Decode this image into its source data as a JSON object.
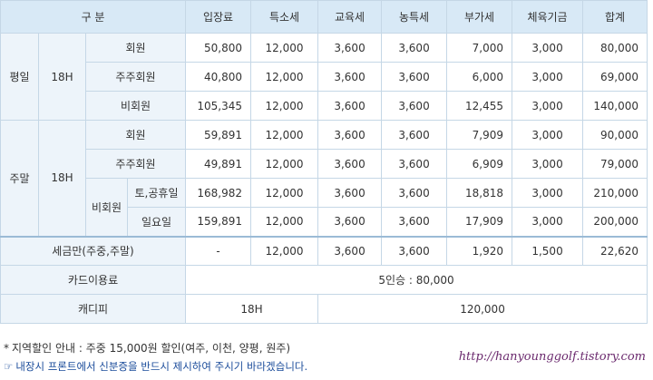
{
  "table": {
    "headers": [
      "구 분",
      "입장료",
      "특소세",
      "교육세",
      "농특세",
      "부가세",
      "체육기금",
      "합계"
    ],
    "weekday": {
      "label": "평일",
      "holes": "18H",
      "rows": [
        {
          "type": "회원",
          "values": [
            "50,800",
            "12,000",
            "3,600",
            "3,600",
            "7,000",
            "3,000",
            "80,000"
          ]
        },
        {
          "type": "주주회원",
          "values": [
            "40,800",
            "12,000",
            "3,600",
            "3,600",
            "6,000",
            "3,000",
            "69,000"
          ]
        },
        {
          "type": "비회원",
          "values": [
            "105,345",
            "12,000",
            "3,600",
            "3,600",
            "12,455",
            "3,000",
            "140,000"
          ]
        }
      ]
    },
    "weekend": {
      "label": "주말",
      "holes": "18H",
      "rows": [
        {
          "type": "회원",
          "values": [
            "59,891",
            "12,000",
            "3,600",
            "3,600",
            "7,909",
            "3,000",
            "90,000"
          ]
        },
        {
          "type": "주주회원",
          "values": [
            "49,891",
            "12,000",
            "3,600",
            "3,600",
            "6,909",
            "3,000",
            "79,000"
          ]
        }
      ],
      "nonmember": {
        "label": "비회원",
        "rows": [
          {
            "type": "토,공휴일",
            "values": [
              "168,982",
              "12,000",
              "3,600",
              "3,600",
              "18,818",
              "3,000",
              "210,000"
            ]
          },
          {
            "type": "일요일",
            "values": [
              "159,891",
              "12,000",
              "3,600",
              "3,600",
              "17,909",
              "3,000",
              "200,000"
            ]
          }
        ]
      }
    },
    "tax_reduction": {
      "label": "세금만(주중,주말)",
      "values": [
        "-",
        "12,000",
        "3,600",
        "3,600",
        "1,920",
        "1,500",
        "22,620"
      ]
    },
    "cart": {
      "label": "카드이용료",
      "value": "5인승 : 80,000"
    },
    "caddie": {
      "label": "캐디피",
      "holes": "18H",
      "value": "120,000"
    }
  },
  "notes": {
    "discount_bullet": "*",
    "discount": "지역할인 안내 : 주중 15,000원 할인(여주, 이천, 양평, 원주)",
    "id_icon": "☞",
    "id_notice": "내장시 프론트에서 신분증을 반드시 제시하여 주시기 바라겠습니다."
  },
  "watermark": "http://hanyounggolf.tistory.com"
}
